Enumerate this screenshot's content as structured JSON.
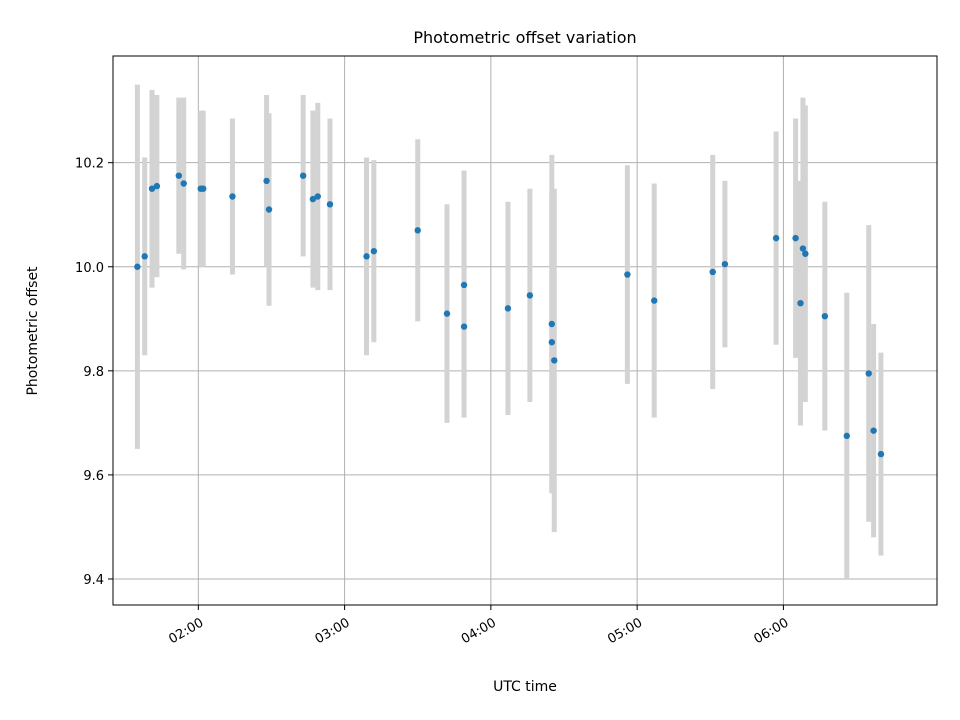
{
  "chart_data": {
    "type": "scatter",
    "title": "Photometric offset variation",
    "xlabel": "UTC time",
    "ylabel": "Photometric offset",
    "xlim": [
      "01:25",
      "07:03"
    ],
    "ylim": [
      9.35,
      10.405
    ],
    "x_ticks": [
      "02:00",
      "03:00",
      "04:00",
      "05:00",
      "06:00"
    ],
    "y_ticks": [
      9.4,
      9.6,
      9.8,
      10.0,
      10.2
    ],
    "y_tick_labels": [
      "9.4",
      "9.6",
      "9.8",
      "10.0",
      "10.2"
    ],
    "grid": true,
    "marker_color": "#1f77b4",
    "errorbar_color": "#d3d3d3",
    "series": [
      {
        "name": "Photometric offset",
        "x": [
          "01:35",
          "01:38",
          "01:41",
          "01:43",
          "01:52",
          "01:54",
          "02:01",
          "02:02",
          "02:14",
          "02:28",
          "02:29",
          "02:43",
          "02:47",
          "02:49",
          "02:54",
          "03:09",
          "03:12",
          "03:30",
          "03:42",
          "03:49",
          "03:49",
          "04:07",
          "04:16",
          "04:25",
          "04:25",
          "04:26",
          "04:56",
          "05:07",
          "05:31",
          "05:36",
          "05:57",
          "06:05",
          "06:07",
          "06:08",
          "06:09",
          "06:17",
          "06:26",
          "06:35",
          "06:37",
          "06:40"
        ],
        "y": [
          10.0,
          10.02,
          10.15,
          10.155,
          10.175,
          10.16,
          10.15,
          10.15,
          10.135,
          10.165,
          10.11,
          10.175,
          10.13,
          10.135,
          10.12,
          10.02,
          10.03,
          10.07,
          9.91,
          9.965,
          9.885,
          9.92,
          9.945,
          9.855,
          9.89,
          9.82,
          9.985,
          9.935,
          9.99,
          10.005,
          10.055,
          10.055,
          9.93,
          10.035,
          10.025,
          9.905,
          9.675,
          9.795,
          9.685,
          9.64
        ],
        "yerr": [
          0.35,
          0.19,
          0.19,
          0.175,
          0.15,
          0.165,
          0.15,
          0.15,
          0.15,
          0.165,
          0.185,
          0.155,
          0.17,
          0.18,
          0.165,
          0.19,
          0.175,
          0.175,
          0.21,
          0.22,
          0.175,
          0.205,
          0.205,
          0.29,
          0.325,
          0.33,
          0.21,
          0.225,
          0.225,
          0.16,
          0.205,
          0.23,
          0.235,
          0.29,
          0.285,
          0.22,
          0.275,
          0.285,
          0.205,
          0.195
        ]
      }
    ]
  }
}
